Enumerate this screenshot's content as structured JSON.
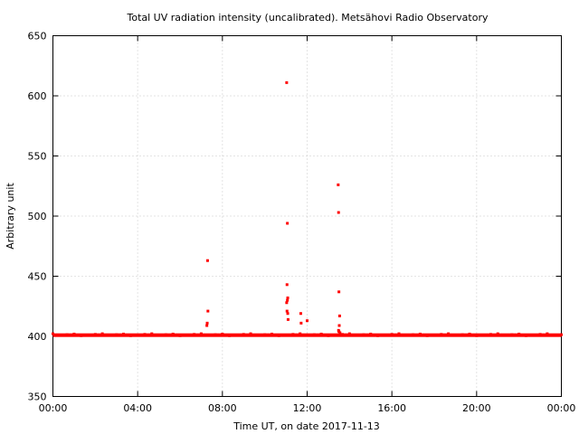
{
  "chart_data": {
    "type": "scatter",
    "title": "Total UV radiation intensity (uncalibrated). Metsähovi Radio Observatory",
    "xlabel": "Time UT, on date 2017-11-13",
    "ylabel": "Arbitrary unit",
    "xlim": [
      "00:00",
      "24:00"
    ],
    "ylim": [
      350,
      650
    ],
    "x_ticks": [
      "00:00",
      "04:00",
      "08:00",
      "12:00",
      "16:00",
      "20:00",
      "00:00"
    ],
    "y_ticks": [
      350,
      400,
      450,
      500,
      550,
      600,
      650
    ],
    "grid": true,
    "color": "#ff0000",
    "baseline": {
      "from": "00:00",
      "to": "24:00",
      "y": 401,
      "note": "continuous dense series near this level"
    },
    "points": [
      {
        "x": "07:18",
        "y": 463
      },
      {
        "x": "07:19",
        "y": 421
      },
      {
        "x": "07:17",
        "y": 411
      },
      {
        "x": "07:16",
        "y": 409
      },
      {
        "x": "11:02",
        "y": 611
      },
      {
        "x": "11:04",
        "y": 494
      },
      {
        "x": "11:03",
        "y": 443
      },
      {
        "x": "11:05",
        "y": 432
      },
      {
        "x": "11:04",
        "y": 430
      },
      {
        "x": "11:02",
        "y": 428
      },
      {
        "x": "11:03",
        "y": 421
      },
      {
        "x": "11:05",
        "y": 419
      },
      {
        "x": "11:06",
        "y": 414
      },
      {
        "x": "11:42",
        "y": 419
      },
      {
        "x": "11:43",
        "y": 411
      },
      {
        "x": "12:00",
        "y": 413
      },
      {
        "x": "13:28",
        "y": 526
      },
      {
        "x": "13:29",
        "y": 503
      },
      {
        "x": "13:30",
        "y": 437
      },
      {
        "x": "13:32",
        "y": 417
      },
      {
        "x": "13:31",
        "y": 409
      },
      {
        "x": "13:30",
        "y": 404
      },
      {
        "x": "13:33",
        "y": 403
      },
      {
        "x": "13:29",
        "y": 405
      }
    ]
  }
}
